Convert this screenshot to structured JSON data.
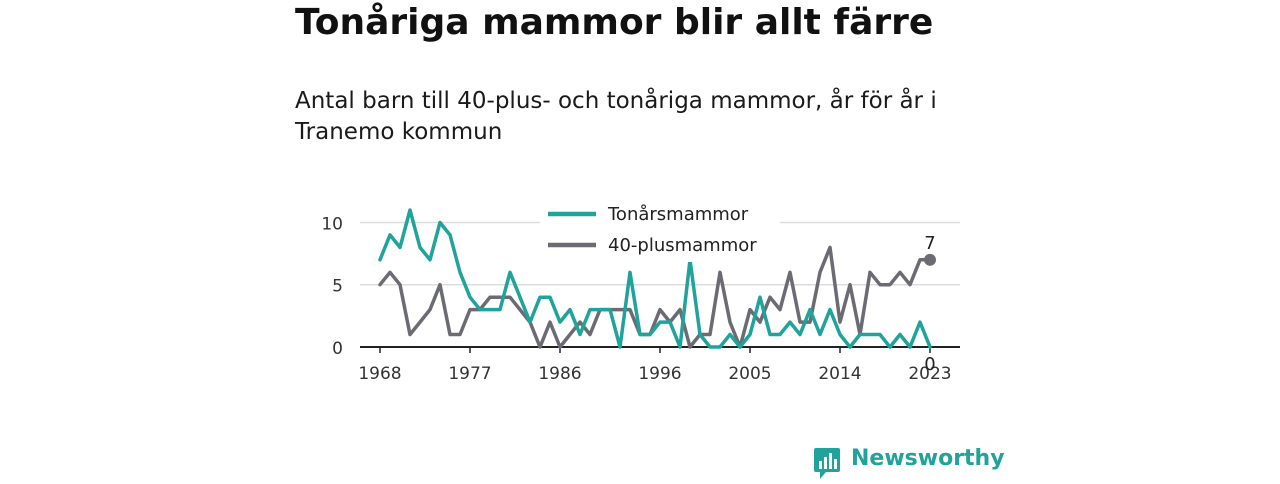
{
  "title": "Tonåriga mammor blir allt färre",
  "subtitle": "Antal barn till 40-plus- och tonåriga mammor, år för år i Tranemo kommun",
  "brand": {
    "name": "Newsworthy",
    "color": "#1fa39a"
  },
  "chart_data": {
    "type": "line",
    "x": [
      1968,
      1969,
      1970,
      1971,
      1972,
      1973,
      1974,
      1975,
      1976,
      1977,
      1978,
      1979,
      1980,
      1981,
      1982,
      1983,
      1984,
      1985,
      1986,
      1987,
      1988,
      1989,
      1990,
      1991,
      1992,
      1993,
      1994,
      1995,
      1996,
      1997,
      1998,
      1999,
      2000,
      2001,
      2002,
      2003,
      2004,
      2005,
      2006,
      2007,
      2008,
      2009,
      2010,
      2011,
      2012,
      2013,
      2014,
      2015,
      2016,
      2017,
      2018,
      2019,
      2020,
      2021,
      2022,
      2023
    ],
    "x_ticks": [
      "1968",
      "1977",
      "1986",
      "1996",
      "2005",
      "2014",
      "2023"
    ],
    "y_ticks": [
      0,
      5,
      10
    ],
    "ylim": [
      0,
      11
    ],
    "series": [
      {
        "name": "Tonårsmammor",
        "color": "#1fa39a",
        "values": [
          7,
          9,
          8,
          11,
          8,
          7,
          10,
          9,
          6,
          4,
          3,
          3,
          3,
          6,
          4,
          2,
          4,
          4,
          2,
          3,
          1,
          3,
          3,
          3,
          0,
          6,
          1,
          1,
          2,
          2,
          0,
          7,
          1,
          0,
          0,
          1,
          0,
          1,
          4,
          1,
          1,
          2,
          1,
          3,
          1,
          3,
          1,
          0,
          1,
          1,
          1,
          0,
          1,
          0,
          2,
          0
        ],
        "end_label": "0"
      },
      {
        "name": "40-plusmammor",
        "color": "#6b6b73",
        "values": [
          5,
          6,
          5,
          1,
          2,
          3,
          5,
          1,
          1,
          3,
          3,
          4,
          4,
          4,
          3,
          2,
          0,
          2,
          0,
          1,
          2,
          1,
          3,
          3,
          3,
          3,
          1,
          1,
          3,
          2,
          3,
          0,
          1,
          1,
          6,
          2,
          0,
          3,
          2,
          4,
          3,
          6,
          2,
          2,
          6,
          8,
          2,
          5,
          1,
          6,
          5,
          5,
          6,
          5,
          7,
          7
        ],
        "end_label": "7"
      }
    ],
    "grid": "horizontal",
    "legend": "top-center"
  }
}
